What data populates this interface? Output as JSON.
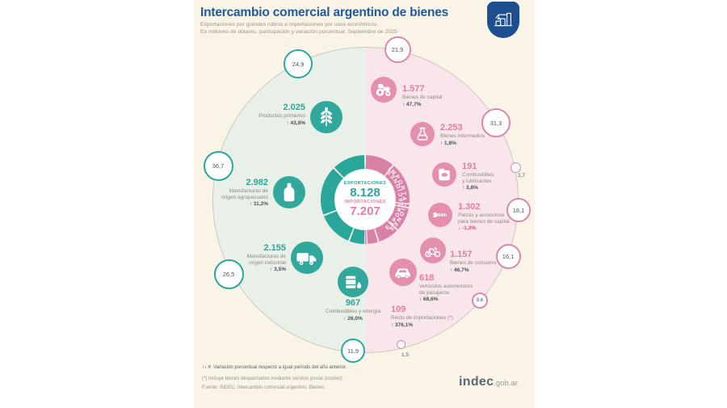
{
  "header": {
    "title": "Intercambio comercial argentino de bienes",
    "subtitle_line1": "Exportaciones por grandes rubros e importaciones por usos económicos.",
    "subtitle_line2": "En millones de dólares, participación y variación porcentual. Septiembre de 2025"
  },
  "ring_labels": {
    "exports": "EXPORTACIONES",
    "imports": "IMPORTACIONES"
  },
  "donut_center": {
    "exports_label": "EXPORTACIONES",
    "exports_total": "8.128",
    "imports_label": "IMPORTACIONES",
    "imports_total": "7.207"
  },
  "palette": {
    "title_blue": "#1d5a9e",
    "export_teal": "#2aa79b",
    "import_pink": "#d980a7",
    "export_icon": "#31a89b",
    "import_icon": "#e48fae",
    "export_value": "#2aa79b",
    "import_value": "#e57ba3",
    "export_half": "#e8f0e8",
    "import_half": "#f9e6ea",
    "card_bg": "#faf4e7",
    "logo_blue": "#1c4e90"
  },
  "chart_data": {
    "type": "pie",
    "title": "Intercambio comercial argentino de bienes",
    "units": "millones de dólares",
    "period": "Septiembre de 2025",
    "exports_total": 8128,
    "imports_total": 7207,
    "totals_display": {
      "exports": "8.128",
      "imports": "7.207"
    },
    "series": [
      {
        "name": "Exportaciones",
        "color": "#2aa79b",
        "icon_color": "#31a89b",
        "value_color": "#2aa79b",
        "half_color": "#e8f0e8",
        "slices": [
          {
            "label": "Productos primarios",
            "label_lines": [
              "Productos primarios"
            ],
            "value": 2025,
            "value_display": "2.025",
            "share_pct": 24.9,
            "share_display": "24,9",
            "yoy": "↑ 43,8%",
            "icon": "wheat"
          },
          {
            "label": "Manufacturas de origen agropecuario",
            "label_lines": [
              "Manufacturas de",
              "origen agropecuario"
            ],
            "value": 2982,
            "value_display": "2.982",
            "share_pct": 36.7,
            "share_display": "36,7",
            "yoy": "↑ 11,2%",
            "icon": "bottle"
          },
          {
            "label": "Manufacturas de origen industrial",
            "label_lines": [
              "Manufacturas de",
              "origen industrial"
            ],
            "value": 2155,
            "value_display": "2.155",
            "share_pct": 26.5,
            "share_display": "26,5",
            "yoy": "↑ 3,5%",
            "icon": "truck"
          },
          {
            "label": "Combustibles y energía",
            "label_lines": [
              "Combustibles y energía"
            ],
            "value": 967,
            "value_display": "967",
            "share_pct": 11.9,
            "share_display": "11,9",
            "yoy": "↑ 26,0%",
            "icon": "oil-drum"
          }
        ]
      },
      {
        "name": "Importaciones",
        "color": "#d980a7",
        "icon_color": "#e48fae",
        "value_color": "#e57ba3",
        "half_color": "#f9e6ea",
        "slices": [
          {
            "label": "Bienes de capital",
            "label_lines": [
              "Bienes de capital"
            ],
            "value": 1577,
            "value_display": "1.577",
            "share_pct": 21.9,
            "share_display": "21,9",
            "yoy": "↑ 47,7%",
            "icon": "tractor"
          },
          {
            "label": "Bienes intermedios",
            "label_lines": [
              "Bienes intermedios"
            ],
            "value": 2253,
            "value_display": "2.253",
            "share_pct": 31.3,
            "share_display": "31,3",
            "yoy": "↑ 1,8%",
            "icon": "flask"
          },
          {
            "label": "Combustibles y lubricantes",
            "label_lines": [
              "Combustibles",
              "y lubricantes"
            ],
            "value": 191,
            "value_display": "191",
            "share_pct": 2.7,
            "share_display": "2,7",
            "yoy": "↑ 3,8%",
            "icon": "fuel-can"
          },
          {
            "label": "Piezas y accesorios para bienes de capital",
            "label_lines": [
              "Piezas y accesorios",
              "para bienes de capital"
            ],
            "value": 1302,
            "value_display": "1.302",
            "share_pct": 18.1,
            "share_display": "18,1",
            "yoy": "↓ -1,3%",
            "icon": "screw"
          },
          {
            "label": "Bienes de consumo",
            "label_lines": [
              "Bienes de consumo"
            ],
            "value": 1157,
            "value_display": "1.157",
            "share_pct": 16.1,
            "share_display": "16,1",
            "yoy": "↑ 46,7%",
            "icon": "motorcycle"
          },
          {
            "label": "Vehículos automotores de pasajeros",
            "label_lines": [
              "Vehículos automotores",
              "de pasajeros"
            ],
            "value": 618,
            "value_display": "618",
            "share_pct": 8.6,
            "share_display": "8,6",
            "yoy": "↑ 68,6%",
            "icon": "car"
          },
          {
            "label": "Resto de importaciones (*)",
            "label_lines": [
              "Resto de importaciones (*)"
            ],
            "value": 109,
            "value_display": "109",
            "share_pct": 1.5,
            "share_display": "1,5",
            "yoy": "↑ 376,1%",
            "icon": null
          }
        ]
      }
    ]
  },
  "footnotes": {
    "legend_prefix": "↑↓ =",
    "legend_text": "Variación porcentual respecto a igual período del año anterior.",
    "asterisk": "(*) Incluye bienes despachados mediante servicio postal (courier).",
    "source": "Fuente: INDEC. Intercambio comercial argentino. Bienes."
  },
  "branding": {
    "wordmark": "indec",
    "suffix": ".gob.ar"
  }
}
